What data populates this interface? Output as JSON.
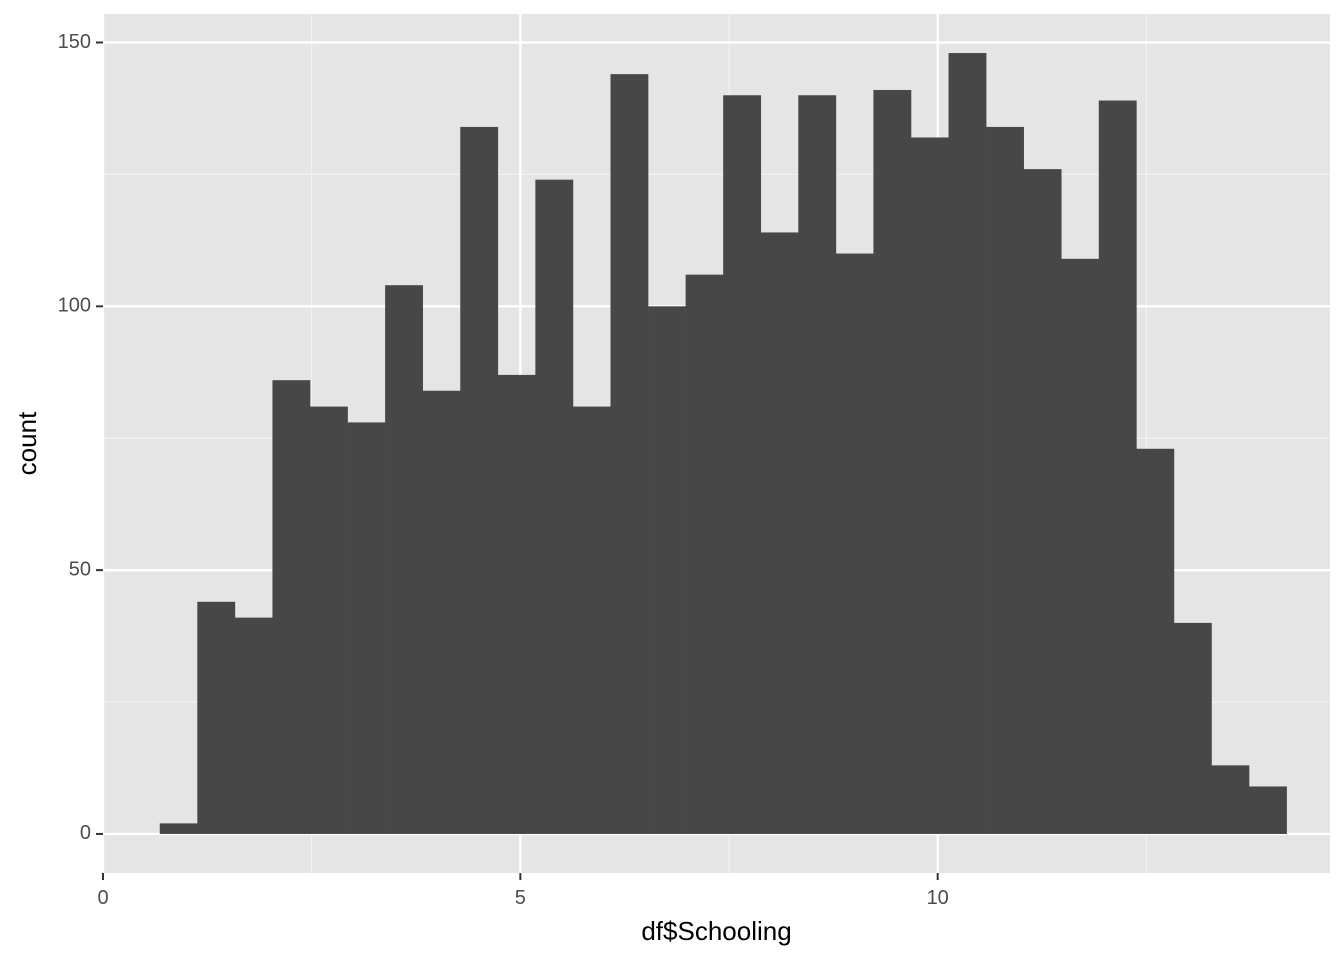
{
  "chart_data": {
    "type": "bar",
    "subtype": "histogram",
    "xlabel": "df$Schooling",
    "ylabel": "count",
    "xlim": [
      0,
      14.7
    ],
    "ylim": [
      -7.4,
      155.4
    ],
    "x_ticks": [
      {
        "value": 0,
        "label": "0"
      },
      {
        "value": 5,
        "label": "5"
      },
      {
        "value": 10,
        "label": "10"
      }
    ],
    "x_minor_ticks": [
      2.5,
      7.5,
      12.5
    ],
    "y_ticks": [
      {
        "value": 0,
        "label": "0"
      },
      {
        "value": 50,
        "label": "50"
      },
      {
        "value": 100,
        "label": "100"
      },
      {
        "value": 150,
        "label": "150"
      }
    ],
    "y_minor_ticks": [
      25,
      75,
      125
    ],
    "grid": true,
    "bins": [
      {
        "x0": 0.68,
        "x1": 1.13,
        "count": 2
      },
      {
        "x0": 1.13,
        "x1": 1.58,
        "count": 44
      },
      {
        "x0": 1.58,
        "x1": 2.03,
        "count": 41
      },
      {
        "x0": 2.03,
        "x1": 2.48,
        "count": 86
      },
      {
        "x0": 2.48,
        "x1": 2.93,
        "count": 81
      },
      {
        "x0": 2.93,
        "x1": 3.38,
        "count": 78
      },
      {
        "x0": 3.38,
        "x1": 3.83,
        "count": 104
      },
      {
        "x0": 3.83,
        "x1": 4.28,
        "count": 84
      },
      {
        "x0": 4.28,
        "x1": 4.73,
        "count": 134
      },
      {
        "x0": 4.73,
        "x1": 5.18,
        "count": 87
      },
      {
        "x0": 5.18,
        "x1": 5.63,
        "count": 124
      },
      {
        "x0": 5.63,
        "x1": 6.08,
        "count": 81
      },
      {
        "x0": 6.08,
        "x1": 6.53,
        "count": 144
      },
      {
        "x0": 6.53,
        "x1": 6.98,
        "count": 100
      },
      {
        "x0": 6.98,
        "x1": 7.43,
        "count": 106
      },
      {
        "x0": 7.43,
        "x1": 7.88,
        "count": 140
      },
      {
        "x0": 7.88,
        "x1": 8.33,
        "count": 114
      },
      {
        "x0": 8.33,
        "x1": 8.78,
        "count": 140
      },
      {
        "x0": 8.78,
        "x1": 9.23,
        "count": 110
      },
      {
        "x0": 9.23,
        "x1": 9.68,
        "count": 141
      },
      {
        "x0": 9.68,
        "x1": 10.13,
        "count": 132
      },
      {
        "x0": 10.13,
        "x1": 10.58,
        "count": 148
      },
      {
        "x0": 10.58,
        "x1": 11.03,
        "count": 134
      },
      {
        "x0": 11.03,
        "x1": 11.48,
        "count": 126
      },
      {
        "x0": 11.48,
        "x1": 11.93,
        "count": 109
      },
      {
        "x0": 11.93,
        "x1": 12.38,
        "count": 139
      },
      {
        "x0": 12.38,
        "x1": 12.83,
        "count": 73
      },
      {
        "x0": 12.83,
        "x1": 13.28,
        "count": 40
      },
      {
        "x0": 13.28,
        "x1": 13.73,
        "count": 13
      },
      {
        "x0": 13.73,
        "x1": 14.18,
        "count": 9
      }
    ],
    "colors": {
      "bar": "#474747",
      "panel_background": "#e5e5e5",
      "grid_major": "#ffffff",
      "grid_minor": "#f2f2f2",
      "tick_mark": "#333333",
      "tick_label": "#4d4d4d",
      "axis_title": "#000000"
    }
  }
}
